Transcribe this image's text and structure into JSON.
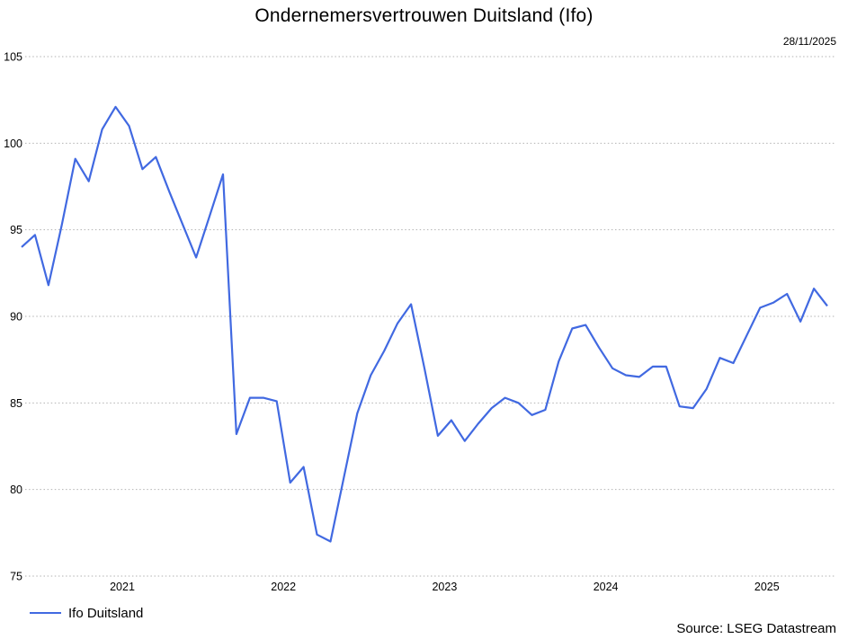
{
  "title": "Ondernemersvertrouwen Duitsland (Ifo)",
  "date_stamp": "28/11/2025",
  "source": "Source: LSEG Datastream",
  "legend": {
    "series_label": "Ifo Duitsland"
  },
  "colors": {
    "line": "#4169E1",
    "grid": "#b2b2b2",
    "text": "#000000",
    "background": "#ffffff"
  },
  "chart_data": {
    "type": "line",
    "title": "Ondernemersvertrouwen Duitsland (Ifo)",
    "ylabel": "",
    "xlabel": "",
    "ylim": [
      75,
      105
    ],
    "y_ticks": [
      75,
      80,
      85,
      90,
      95,
      100,
      105
    ],
    "grid": "horizontal-dotted",
    "legend_position": "bottom-left",
    "year_ticks": [
      "2021",
      "2022",
      "2023",
      "2024",
      "2025"
    ],
    "months": [
      "2020-11",
      "2020-12",
      "2021-01",
      "2021-02",
      "2021-03",
      "2021-04",
      "2021-05",
      "2021-06",
      "2021-07",
      "2021-08",
      "2021-09",
      "2021-10",
      "2021-11",
      "2021-12",
      "2022-01",
      "2022-02",
      "2022-03",
      "2022-04",
      "2022-05",
      "2022-06",
      "2022-07",
      "2022-08",
      "2022-09",
      "2022-10",
      "2022-11",
      "2022-12",
      "2023-01",
      "2023-02",
      "2023-03",
      "2023-04",
      "2023-05",
      "2023-06",
      "2023-07",
      "2023-08",
      "2023-09",
      "2023-10",
      "2023-11",
      "2023-12",
      "2024-01",
      "2024-02",
      "2024-03",
      "2024-04",
      "2024-05",
      "2024-06",
      "2024-07",
      "2024-08",
      "2024-09",
      "2024-10",
      "2024-11",
      "2024-12",
      "2025-01",
      "2025-02",
      "2025-03",
      "2025-04",
      "2025-05",
      "2025-06",
      "2025-07",
      "2025-08",
      "2025-09",
      "2025-10",
      "2025-11"
    ],
    "series": [
      {
        "name": "Ifo Duitsland",
        "values": [
          94.0,
          94.7,
          91.8,
          95.3,
          99.1,
          97.8,
          100.8,
          102.1,
          101.0,
          98.5,
          99.2,
          97.2,
          95.3,
          93.4,
          95.8,
          98.2,
          83.2,
          85.3,
          85.3,
          85.1,
          80.4,
          81.3,
          77.4,
          77.0,
          80.7,
          84.4,
          86.6,
          88.0,
          89.6,
          90.7,
          87.0,
          83.1,
          84.0,
          82.8,
          83.8,
          84.7,
          85.3,
          85.0,
          84.3,
          84.6,
          87.4,
          89.3,
          89.5,
          88.2,
          87.0,
          86.6,
          86.5,
          87.1,
          87.1,
          84.8,
          84.7,
          85.8,
          87.6,
          87.3,
          88.9,
          90.5,
          90.8,
          91.3,
          89.7,
          91.6,
          90.6
        ]
      }
    ]
  }
}
